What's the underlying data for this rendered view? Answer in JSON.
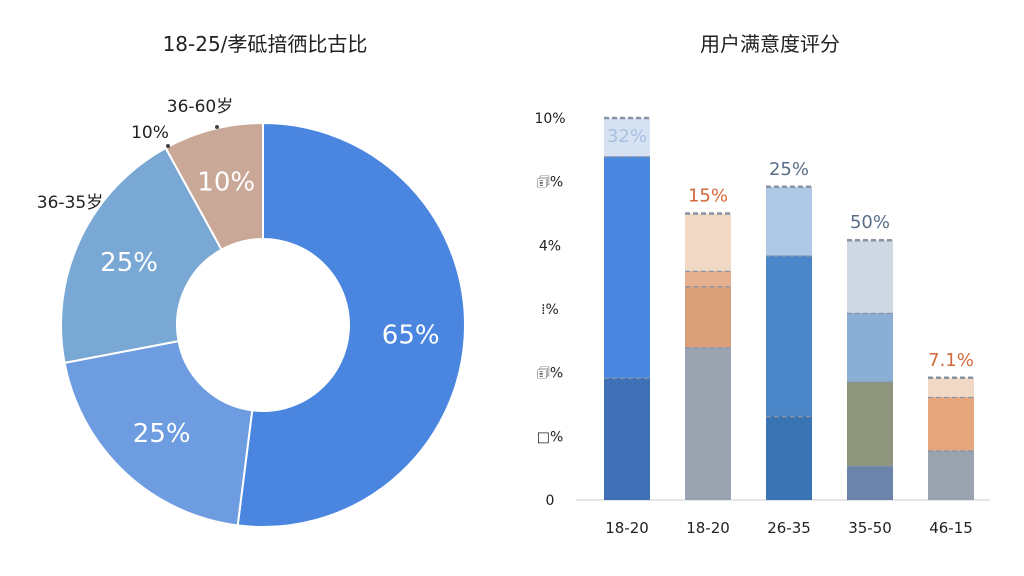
{
  "chart_data": [
    {
      "type": "pie",
      "title": "18-25/孝砥揞徆比古比",
      "slices": [
        {
          "label": "65%",
          "value": 65,
          "color": "#4a86e0"
        },
        {
          "label": "25%",
          "value": 25,
          "color": "#6e9ce0"
        },
        {
          "label": "25%",
          "value": 25,
          "color": "#7aa8d4"
        },
        {
          "label": "10%",
          "value": 10,
          "color": "#c9a898"
        }
      ],
      "hole": true,
      "outer_labels": [
        "36-60岁",
        "10%",
        "36-35岁"
      ]
    },
    {
      "type": "bar",
      "stacked": true,
      "title": "用户满意度评分",
      "categories": [
        "18-20",
        "18-20",
        "26-35",
        "35-50",
        "46-15"
      ],
      "y_ticks": [
        "10%",
        "🗊%",
        "4%",
        "⁞%",
        "🗊%",
        "□%",
        "0"
      ],
      "ylim": [
        0,
        100
      ],
      "bar_labels": [
        "32%",
        "15%",
        "25%",
        "50%",
        "7.1%"
      ],
      "bar_label_colors": [
        "#a8c0e0",
        "#d4693c",
        "#5a6f8a",
        "#5a6f8a",
        "#d4693c"
      ],
      "stacks": [
        [
          {
            "value": 32,
            "color": "#3f6fb4"
          },
          {
            "value": 58,
            "color": "#4a86e0"
          },
          {
            "value": 10,
            "color": "#d6e2f2"
          }
        ],
        [
          {
            "value": 40,
            "color": "#9aa3b0"
          },
          {
            "value": 16,
            "color": "#d9a07a"
          },
          {
            "value": 4,
            "color": "#e6b08e"
          },
          {
            "value": 15,
            "color": "#f0d8c4"
          }
        ],
        [
          {
            "value": 22,
            "color": "#3a74b4"
          },
          {
            "value": 42,
            "color": "#4a86c8"
          },
          {
            "value": 18,
            "color": "#aec8e6"
          }
        ],
        [
          {
            "value": 9,
            "color": "#6d84aa"
          },
          {
            "value": 22,
            "color": "#8f957c"
          },
          {
            "value": 18,
            "color": "#8aaed4"
          },
          {
            "value": 19,
            "color": "#cfd8e2"
          }
        ],
        [
          {
            "value": 13,
            "color": "#9aa3b0"
          },
          {
            "value": 14,
            "color": "#e6a67e"
          },
          {
            "value": 5,
            "color": "#f0d8c4"
          }
        ]
      ]
    }
  ]
}
